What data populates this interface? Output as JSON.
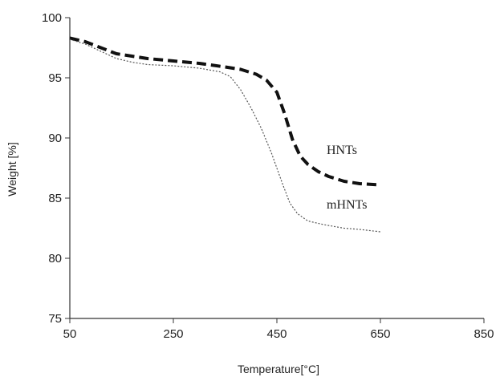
{
  "chart_data": {
    "type": "line",
    "xlabel": "Temperature[°C]",
    "ylabel": "Weight [%]",
    "xlim": [
      50,
      850
    ],
    "ylim": [
      75,
      100
    ],
    "xticks": [
      50,
      250,
      450,
      650,
      850
    ],
    "yticks": [
      75,
      80,
      85,
      90,
      95,
      100
    ],
    "grid": false,
    "series": [
      {
        "name": "HNTs",
        "line_style": "thick-dashed",
        "color": "#111111",
        "x": [
          50,
          80,
          110,
          140,
          170,
          200,
          250,
          300,
          350,
          380,
          410,
          430,
          450,
          465,
          480,
          495,
          510,
          530,
          550,
          580,
          610,
          650
        ],
        "y": [
          98.3,
          98.0,
          97.5,
          97.0,
          96.8,
          96.6,
          96.4,
          96.2,
          95.9,
          95.7,
          95.3,
          94.8,
          93.8,
          92.0,
          89.9,
          88.5,
          87.8,
          87.2,
          86.8,
          86.4,
          86.2,
          86.1
        ]
      },
      {
        "name": "mHNTs",
        "line_style": "thin-dotted",
        "color": "#555555",
        "x": [
          50,
          80,
          110,
          140,
          170,
          200,
          250,
          300,
          340,
          360,
          380,
          400,
          420,
          440,
          460,
          475,
          490,
          510,
          540,
          580,
          610,
          650
        ],
        "y": [
          98.2,
          97.8,
          97.2,
          96.6,
          96.3,
          96.1,
          96.0,
          95.8,
          95.5,
          95.1,
          94.0,
          92.5,
          90.8,
          88.7,
          86.3,
          84.6,
          83.7,
          83.1,
          82.8,
          82.5,
          82.4,
          82.2
        ]
      }
    ]
  }
}
